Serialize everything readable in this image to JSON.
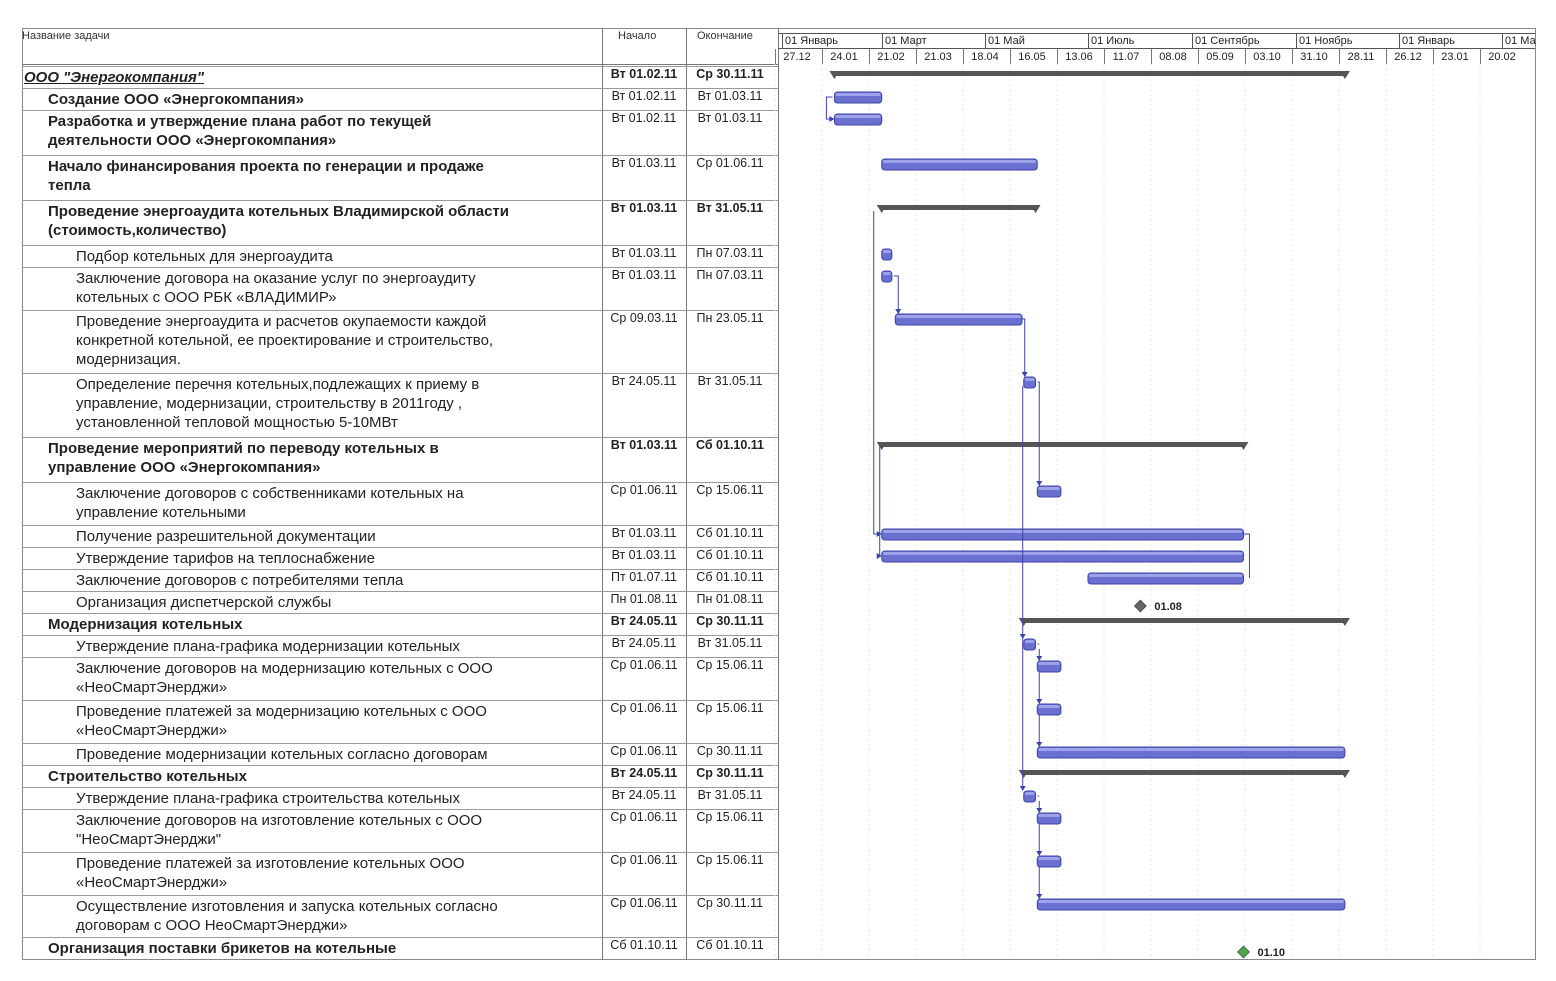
{
  "header": {
    "task_name": "Название задачи",
    "start": "Начало",
    "finish": "Окончание"
  },
  "timeline": {
    "months": [
      "01 Январь",
      "01 Март",
      "01 Май",
      "01 Июль",
      "01 Сентябрь",
      "01 Ноябрь",
      "01 Январь",
      "01 Ма"
    ],
    "weeks": [
      "27.12",
      "24.01",
      "21.02",
      "21.03",
      "18.04",
      "16.05",
      "13.06",
      "11.07",
      "08.08",
      "05.09",
      "03.10",
      "31.10",
      "28.11",
      "26.12",
      "23.01",
      "20.02"
    ]
  },
  "tasks": [
    {
      "name": "ООО \"Энергокомпания\"",
      "start": "Вт 01.02.11",
      "finish": "Ср 30.11.11",
      "level": 0
    },
    {
      "name": "Создание ООО «Энергокомпания»",
      "start": "Вт 01.02.11",
      "finish": "Вт 01.03.11",
      "level": 1
    },
    {
      "name": "Разработка и утверждение плана работ по текущей\nдеятельности ООО «Энергокомпания»",
      "start": "Вт 01.02.11",
      "finish": "Вт 01.03.11",
      "level": 1
    },
    {
      "name": "Начало финансирования проекта по генерации и продаже\nтепла",
      "start": "Вт 01.03.11",
      "finish": "Ср 01.06.11",
      "level": 1
    },
    {
      "name": "Проведение энергоаудита котельных Владимирской области\n(стоимость,количество)",
      "start": "Вт 01.03.11",
      "finish": "Вт 31.05.11",
      "level": 1
    },
    {
      "name": "Подбор котельных для энергоаудита",
      "start": "Вт 01.03.11",
      "finish": "Пн 07.03.11",
      "level": 2
    },
    {
      "name": "Заключение договора на оказание услуг по энергоаудиту\nкотельных с ООО РБК «ВЛАДИМИР»",
      "start": "Вт 01.03.11",
      "finish": "Пн 07.03.11",
      "level": 2
    },
    {
      "name": "Проведение энергоаудита и расчетов окупаемости каждой\nконкретной котельной, ее проектирование и строительство,\nмодернизация.",
      "start": "Ср 09.03.11",
      "finish": "Пн 23.05.11",
      "level": 2
    },
    {
      "name": "Определение перечня котельных,подлежащих к приему в\nуправление, модернизации, строительству в 2011году ,\nустановленной тепловой мощностью 5-10МВт",
      "start": "Вт 24.05.11",
      "finish": "Вт 31.05.11",
      "level": 2
    },
    {
      "name": "Проведение мероприятий по переводу котельных в\nуправление  ООО «Энергокомпания»",
      "start": "Вт 01.03.11",
      "finish": "Сб 01.10.11",
      "level": 1
    },
    {
      "name": "Заключение договоров с собственниками котельных на\nуправление котельными",
      "start": "Ср 01.06.11",
      "finish": "Ср 15.06.11",
      "level": 2
    },
    {
      "name": "Получение разрешительной документации",
      "start": "Вт 01.03.11",
      "finish": "Сб 01.10.11",
      "level": 2
    },
    {
      "name": "Утверждение тарифов на теплоснабжение",
      "start": "Вт 01.03.11",
      "finish": "Сб 01.10.11",
      "level": 2
    },
    {
      "name": "Заключение договоров с потребителями тепла",
      "start": "Пт 01.07.11",
      "finish": "Сб 01.10.11",
      "level": 2
    },
    {
      "name": "Организация диспетчерской службы",
      "start": "Пн 01.08.11",
      "finish": "Пн 01.08.11",
      "level": 2
    },
    {
      "name": "Модернизация котельных",
      "start": "Вт 24.05.11",
      "finish": "Ср 30.11.11",
      "level": 1
    },
    {
      "name": "Утверждение плана-графика модернизации котельных",
      "start": "Вт 24.05.11",
      "finish": "Вт 31.05.11",
      "level": 2
    },
    {
      "name": "Заключение договоров на модернизацию котельных с ООО\n«НеоСмартЭнерджи»",
      "start": "Ср 01.06.11",
      "finish": "Ср 15.06.11",
      "level": 2
    },
    {
      "name": "Проведение платежей за модернизацию котельных с  ООО\n«НеоСмартЭнерджи»",
      "start": "Ср 01.06.11",
      "finish": "Ср 15.06.11",
      "level": 2
    },
    {
      "name": "Проведение модернизации котельных согласно договорам",
      "start": "Ср 01.06.11",
      "finish": "Ср 30.11.11",
      "level": 2
    },
    {
      "name": "Строительство котельных",
      "start": "Вт 24.05.11",
      "finish": "Ср 30.11.11",
      "level": 1
    },
    {
      "name": "Утверждение плана-графика строительства котельных",
      "start": "Вт 24.05.11",
      "finish": "Вт 31.05.11",
      "level": 2
    },
    {
      "name": "Заключение договоров на изготовление котельных с ООО\n\"НеоСмартЭнерджи\"",
      "start": "Ср 01.06.11",
      "finish": "Ср 15.06.11",
      "level": 2
    },
    {
      "name": "Проведение платежей за изготовление котельных   ООО\n«НеоСмартЭнерджи»",
      "start": "Ср 01.06.11",
      "finish": "Ср 15.06.11",
      "level": 2
    },
    {
      "name": "Осуществление  изготовления и запуска котельных согласно\nдоговорам с ООО НеоСмартЭнерджи»",
      "start": "Ср 01.06.11",
      "finish": "Ср 30.11.11",
      "level": 2
    },
    {
      "name": "Организация поставки брикетов на котельные",
      "start": "Сб 01.10.11",
      "finish": "Сб 01.10.11",
      "level": 1
    }
  ],
  "gantt": {
    "bars": [
      {
        "kind": "summary",
        "from": "2011-02-01",
        "to": "2011-11-30"
      },
      {
        "kind": "task",
        "from": "2011-02-01",
        "to": "2011-03-01"
      },
      {
        "kind": "task",
        "from": "2011-02-01",
        "to": "2011-03-01"
      },
      {
        "kind": "task",
        "from": "2011-03-01",
        "to": "2011-06-01"
      },
      {
        "kind": "summary",
        "from": "2011-03-01",
        "to": "2011-05-31"
      },
      {
        "kind": "task",
        "from": "2011-03-01",
        "to": "2011-03-07"
      },
      {
        "kind": "task",
        "from": "2011-03-01",
        "to": "2011-03-07"
      },
      {
        "kind": "task",
        "from": "2011-03-09",
        "to": "2011-05-23"
      },
      {
        "kind": "task",
        "from": "2011-05-24",
        "to": "2011-05-31"
      },
      {
        "kind": "summary",
        "from": "2011-03-01",
        "to": "2011-10-01"
      },
      {
        "kind": "task",
        "from": "2011-06-01",
        "to": "2011-06-15"
      },
      {
        "kind": "task",
        "from": "2011-03-01",
        "to": "2011-10-01"
      },
      {
        "kind": "task",
        "from": "2011-03-01",
        "to": "2011-10-01"
      },
      {
        "kind": "task",
        "from": "2011-07-01",
        "to": "2011-10-01"
      },
      {
        "kind": "milestone",
        "from": "2011-08-01",
        "to": "2011-08-01",
        "label": "01.08",
        "color": "#666666"
      },
      {
        "kind": "summary",
        "from": "2011-05-24",
        "to": "2011-11-30"
      },
      {
        "kind": "task",
        "from": "2011-05-24",
        "to": "2011-05-31"
      },
      {
        "kind": "task",
        "from": "2011-06-01",
        "to": "2011-06-15"
      },
      {
        "kind": "task",
        "from": "2011-06-01",
        "to": "2011-06-15"
      },
      {
        "kind": "task",
        "from": "2011-06-01",
        "to": "2011-11-30"
      },
      {
        "kind": "summary",
        "from": "2011-05-24",
        "to": "2011-11-30"
      },
      {
        "kind": "task",
        "from": "2011-05-24",
        "to": "2011-05-31"
      },
      {
        "kind": "task",
        "from": "2011-06-01",
        "to": "2011-06-15"
      },
      {
        "kind": "task",
        "from": "2011-06-01",
        "to": "2011-06-15"
      },
      {
        "kind": "task",
        "from": "2011-06-01",
        "to": "2011-11-30"
      },
      {
        "kind": "milestone",
        "from": "2011-10-01",
        "to": "2011-10-01",
        "label": "01.10",
        "color": "#4aa84a"
      }
    ],
    "colors": {
      "task_bar": "#6a70d0",
      "summary_bar": "#555555",
      "link": "#3a44b0"
    }
  }
}
